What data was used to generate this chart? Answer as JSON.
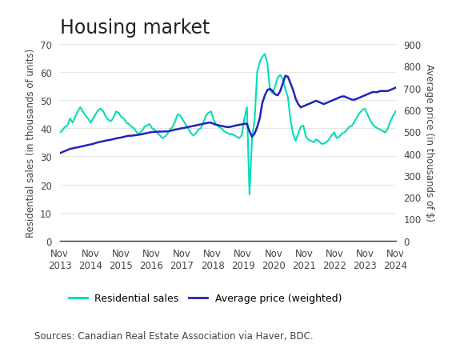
{
  "title": "Housing market",
  "source_text": "Sources: Canadian Real Estate Association via Haver, BDC.",
  "legend": [
    "Residential sales",
    "Average price (weighted)"
  ],
  "left_ylabel": "Residential sales (in thousands of units)",
  "right_ylabel": "Average price (in thousands of $)",
  "left_ylim": [
    0,
    70
  ],
  "right_ylim": [
    0,
    900
  ],
  "left_yticks": [
    0,
    10,
    20,
    30,
    40,
    50,
    60,
    70
  ],
  "right_yticks": [
    0,
    100,
    200,
    300,
    400,
    500,
    600,
    700,
    800,
    900
  ],
  "x_tick_labels": [
    "Nov\n2013",
    "Nov\n2014",
    "Nov\n2015",
    "Nov\n2016",
    "Nov\n2017",
    "Nov\n2018",
    "Nov\n2019",
    "Nov\n2020",
    "Nov\n2021",
    "Nov\n2022",
    "Nov\n2023",
    "Nov\n2024"
  ],
  "color_sales": "#00DDB8",
  "color_price": "#2222BB",
  "background_color": "#FFFFFF",
  "title_fontsize": 17,
  "label_fontsize": 8.5,
  "tick_fontsize": 8.5,
  "source_fontsize": 8.5,
  "sales_data": [
    38.5,
    39.2,
    40.5,
    41.0,
    43.5,
    42.0,
    44.0,
    46.0,
    47.5,
    46.0,
    44.5,
    43.5,
    42.0,
    43.5,
    45.0,
    46.5,
    47.0,
    46.0,
    44.0,
    43.0,
    42.5,
    44.0,
    46.0,
    45.5,
    44.0,
    43.5,
    42.0,
    41.5,
    40.5,
    40.0,
    38.5,
    38.0,
    39.0,
    40.5,
    41.0,
    41.5,
    40.0,
    39.5,
    38.5,
    37.5,
    36.5,
    37.0,
    38.0,
    39.5,
    40.5,
    42.5,
    45.0,
    44.5,
    43.0,
    41.5,
    40.0,
    38.5,
    37.5,
    38.0,
    39.5,
    40.0,
    42.0,
    44.5,
    45.5,
    46.0,
    43.0,
    41.5,
    40.5,
    40.0,
    39.0,
    38.5,
    38.0,
    38.0,
    37.5,
    37.0,
    36.5,
    37.5,
    43.5,
    47.5,
    16.5,
    36.5,
    43.0,
    60.0,
    63.5,
    65.5,
    66.5,
    63.0,
    53.5,
    52.5,
    55.0,
    58.0,
    59.0,
    57.5,
    54.0,
    51.0,
    43.0,
    38.0,
    35.5,
    38.0,
    40.5,
    41.0,
    37.0,
    36.0,
    35.5,
    35.0,
    36.0,
    35.5,
    34.5,
    34.5,
    35.0,
    36.0,
    37.5,
    38.5,
    36.5,
    37.0,
    38.0,
    38.5,
    39.5,
    40.5,
    41.0,
    42.5,
    44.0,
    45.5,
    46.5,
    47.0,
    45.0,
    43.0,
    41.5,
    40.5,
    40.0,
    39.5,
    39.0,
    38.5,
    40.0,
    42.5,
    44.5,
    46.0
  ],
  "price_data": [
    400,
    405,
    410,
    415,
    420,
    422,
    425,
    427,
    430,
    432,
    435,
    438,
    440,
    443,
    447,
    450,
    453,
    455,
    458,
    460,
    462,
    465,
    468,
    470,
    472,
    475,
    478,
    480,
    480,
    482,
    483,
    485,
    487,
    490,
    492,
    495,
    497,
    498,
    498,
    499,
    499,
    500,
    500,
    502,
    505,
    508,
    510,
    513,
    515,
    517,
    520,
    522,
    525,
    527,
    530,
    532,
    535,
    537,
    540,
    540,
    535,
    530,
    528,
    525,
    523,
    520,
    520,
    522,
    525,
    528,
    530,
    532,
    535,
    535,
    500,
    475,
    490,
    520,
    560,
    630,
    665,
    690,
    695,
    685,
    670,
    665,
    685,
    720,
    755,
    750,
    720,
    690,
    650,
    625,
    610,
    615,
    620,
    625,
    630,
    635,
    640,
    635,
    630,
    625,
    630,
    635,
    640,
    645,
    650,
    655,
    660,
    660,
    655,
    650,
    645,
    645,
    650,
    655,
    660,
    665,
    670,
    675,
    680,
    680,
    680,
    685,
    685,
    685,
    685,
    690,
    695,
    700
  ]
}
